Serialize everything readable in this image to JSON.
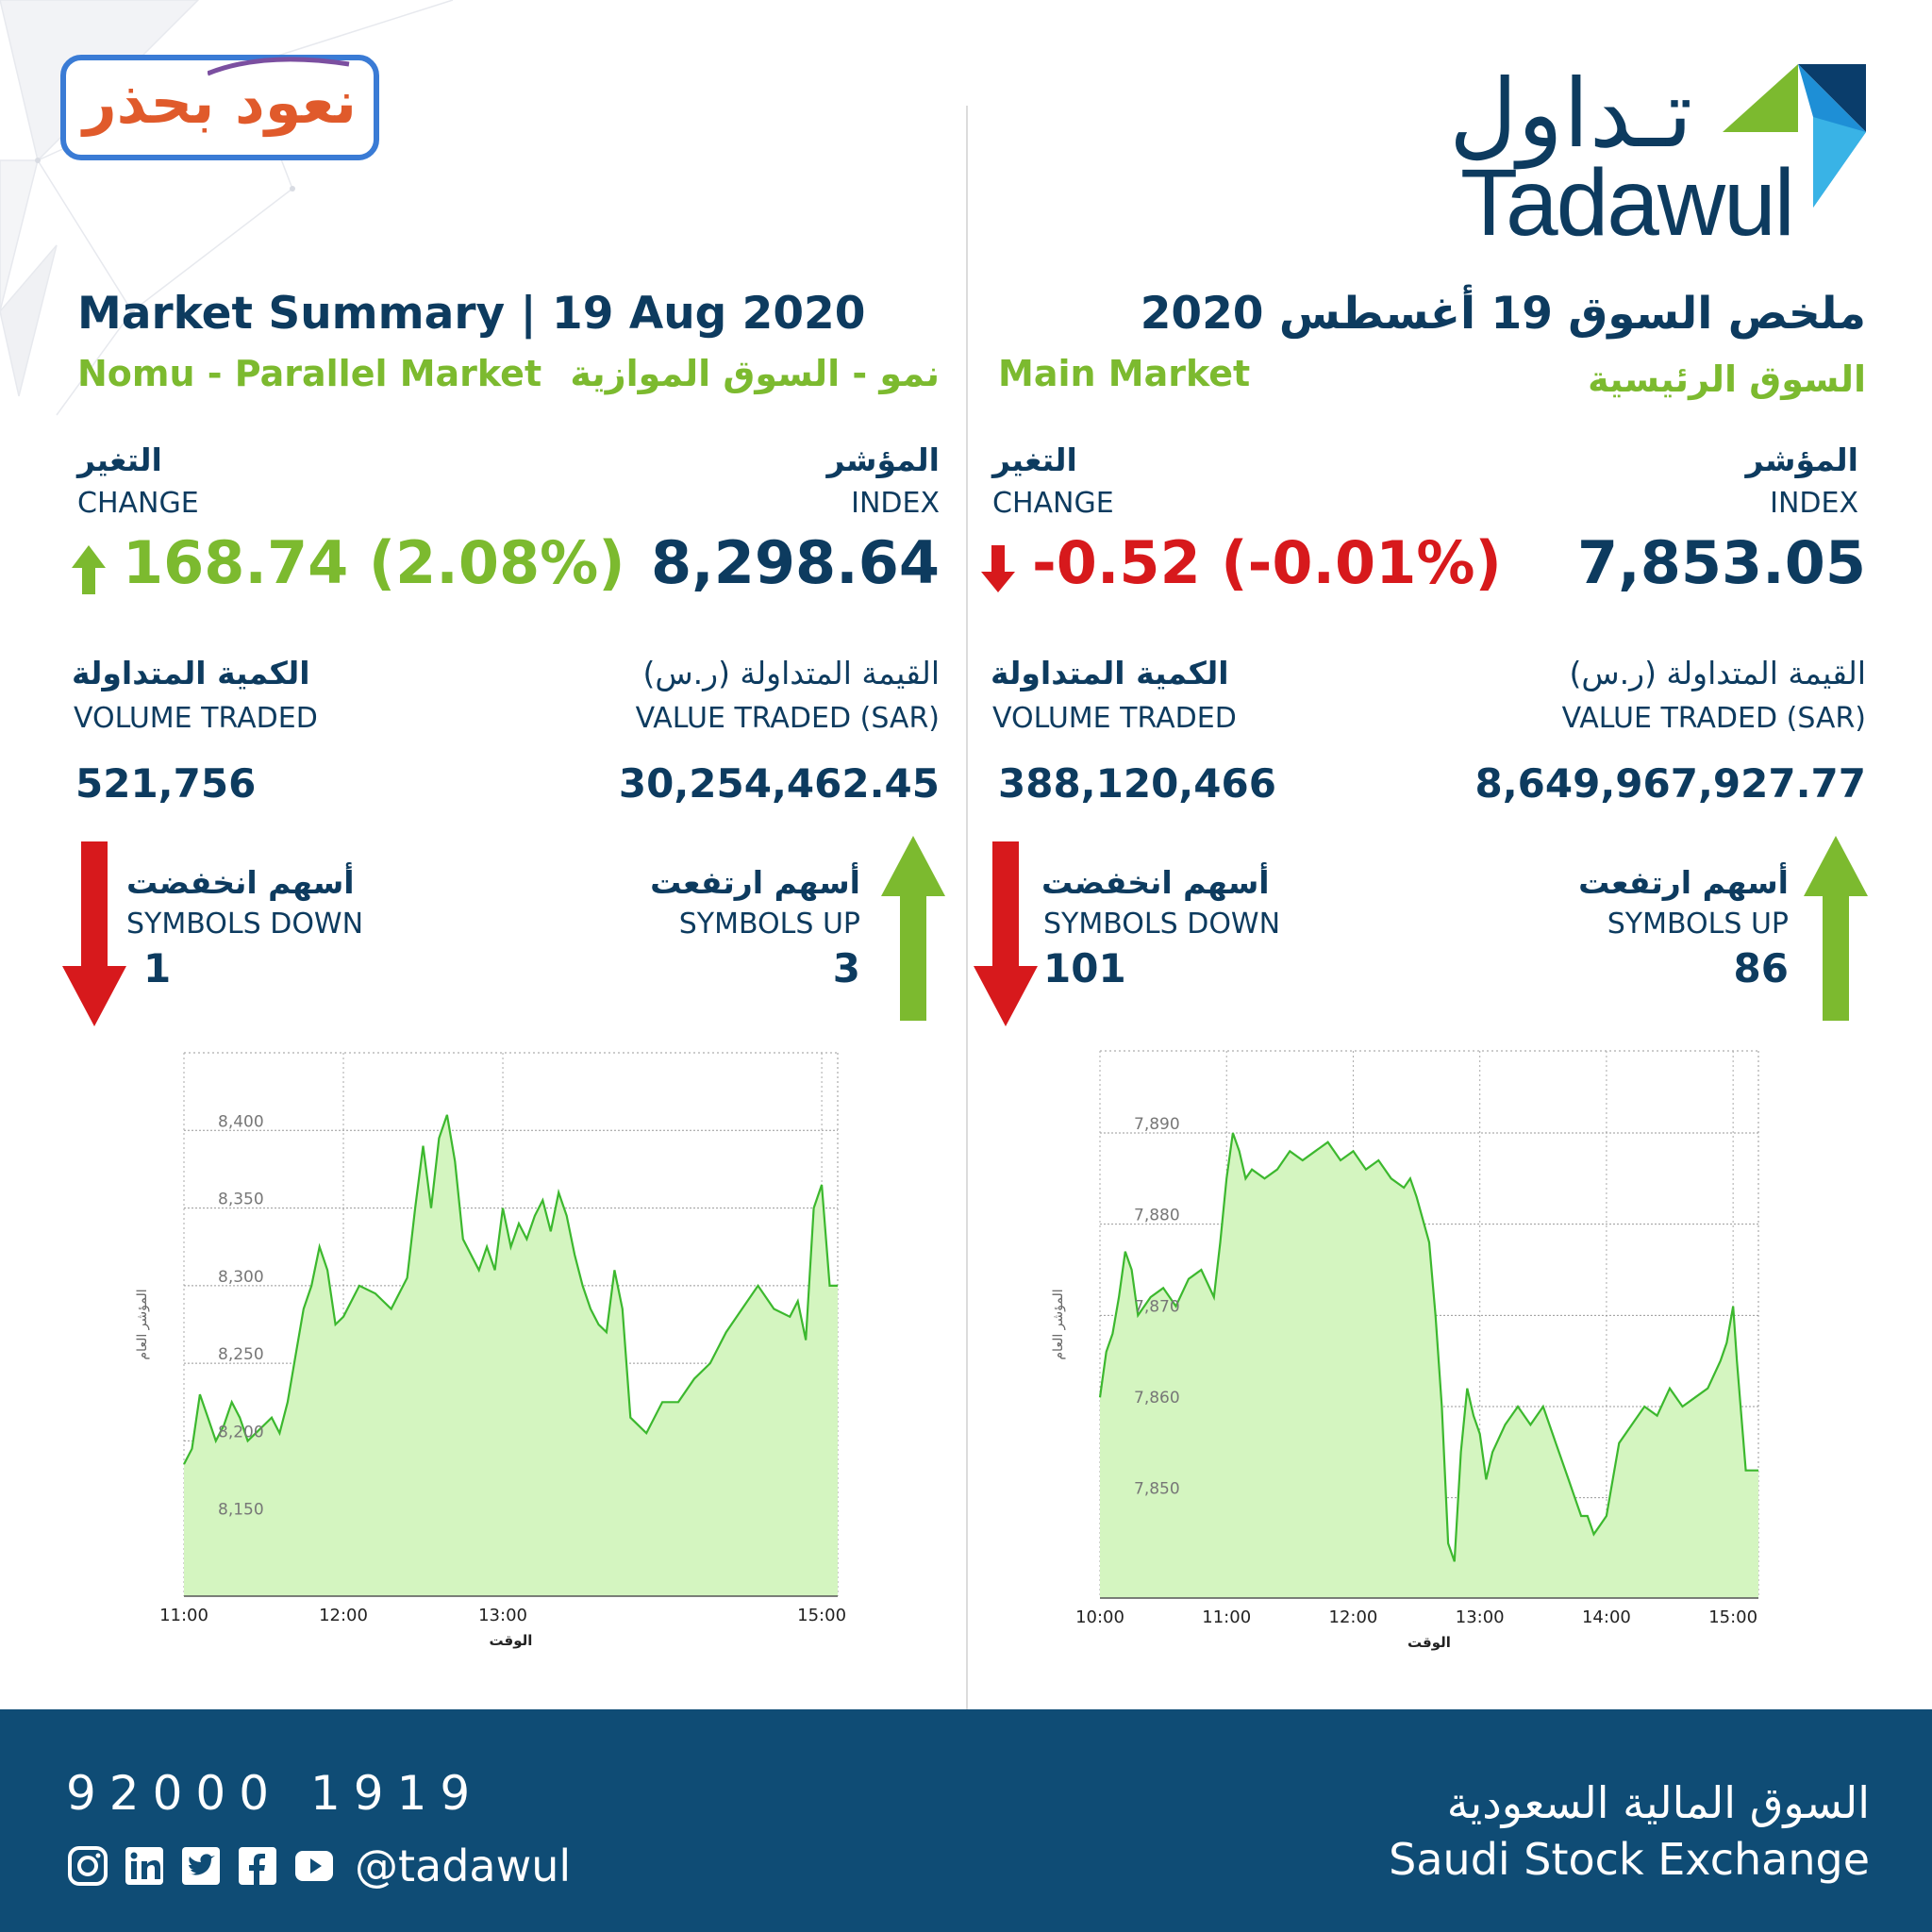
{
  "brand": {
    "campaign_logo": "نعود بحذر",
    "tadawul_ar": "تـداول",
    "tadawul_en": "Tadawul"
  },
  "header": {
    "title_en": "Market Summary | 19 Aug 2020",
    "title_ar": "ملخص السوق  19 أغسطس 2020"
  },
  "nomu": {
    "name_en": "Nomu - Parallel Market",
    "name_ar": "نمو - السوق الموازية",
    "index_ar": "المؤشر",
    "index_en": "INDEX",
    "index_value": "8,298.64",
    "change_ar": "التغير",
    "change_en": "CHANGE",
    "change_value": "168.74 (2.08%)",
    "value_traded_ar": "القيمة المتداولة (ر.س)",
    "value_traded_en": "VALUE TRADED (SAR)",
    "value_traded": "30,254,462.45",
    "volume_traded_ar": "الكمية المتداولة",
    "volume_traded_en": "VOLUME TRADED",
    "volume_traded": "521,756",
    "symbols_up_ar": "أسهم ارتفعت",
    "symbols_up_en": "SYMBOLS UP",
    "symbols_up": "3",
    "symbols_down_ar": "أسهم انخفضت",
    "symbols_down_en": "SYMBOLS DOWN",
    "symbols_down": "1"
  },
  "main": {
    "name_en": "Main Market",
    "name_ar": "السوق الرئيسية",
    "index_ar": "المؤشر",
    "index_en": "INDEX",
    "index_value": "7,853.05",
    "change_ar": "التغير",
    "change_en": "CHANGE",
    "change_value": "-0.52 (-0.01%)",
    "value_traded_ar": "القيمة المتداولة (ر.س)",
    "value_traded_en": "VALUE TRADED (SAR)",
    "value_traded": "8,649,967,927.77",
    "volume_traded_ar": "الكمية المتداولة",
    "volume_traded_en": "VOLUME TRADED",
    "volume_traded": "388,120,466",
    "symbols_up_ar": "أسهم ارتفعت",
    "symbols_up_en": "SYMBOLS UP",
    "symbols_up": "86",
    "symbols_down_ar": "أسهم انخفضت",
    "symbols_down_en": "SYMBOLS DOWN",
    "symbols_down": "101"
  },
  "colors": {
    "navy": "#0d3b5f",
    "green": "#7cba2f",
    "red": "#d7191c",
    "chart_line": "#3cb82e",
    "chart_fill": "#d4f5c0",
    "footer_bg": "#0f4c75"
  },
  "footer": {
    "phone": "92000 1919",
    "handle": "@tadawul",
    "exchange_ar": "السوق المالية السعودية",
    "exchange_en": "Saudi Stock Exchange",
    "social_icons": [
      "instagram-icon",
      "linkedin-icon",
      "twitter-icon",
      "facebook-icon",
      "youtube-icon"
    ]
  },
  "chart_data": [
    {
      "type": "area",
      "market": "Nomu",
      "xlabel": "الوقت",
      "ylabel": "المؤشر العام",
      "xlim": [
        11.0,
        15.1
      ],
      "ylim": [
        8100,
        8450
      ],
      "x_ticks": [
        11,
        12,
        13,
        15
      ],
      "x_tick_labels": [
        "11:00",
        "12:00",
        "13:00",
        "15:00"
      ],
      "y_ticks": [
        8150,
        8200,
        8250,
        8300,
        8350,
        8400
      ],
      "y_tick_labels": [
        "8,150",
        "8,200",
        "8,250",
        "8,300",
        "8,350",
        "8,400"
      ],
      "grid": true,
      "x": [
        11.0,
        11.05,
        11.1,
        11.15,
        11.2,
        11.25,
        11.3,
        11.35,
        11.4,
        11.45,
        11.5,
        11.55,
        11.6,
        11.65,
        11.7,
        11.75,
        11.8,
        11.85,
        11.9,
        11.95,
        12.0,
        12.1,
        12.2,
        12.3,
        12.4,
        12.45,
        12.5,
        12.55,
        12.6,
        12.65,
        12.7,
        12.75,
        12.8,
        12.85,
        12.9,
        12.95,
        13.0,
        13.05,
        13.1,
        13.15,
        13.2,
        13.25,
        13.3,
        13.35,
        13.4,
        13.45,
        13.5,
        13.55,
        13.6,
        13.65,
        13.7,
        13.75,
        13.8,
        13.9,
        14.0,
        14.1,
        14.2,
        14.3,
        14.4,
        14.5,
        14.6,
        14.7,
        14.8,
        14.85,
        14.9,
        14.95,
        15.0,
        15.05,
        15.1
      ],
      "y": [
        8185,
        8195,
        8230,
        8215,
        8200,
        8210,
        8225,
        8215,
        8200,
        8205,
        8210,
        8215,
        8205,
        8225,
        8255,
        8285,
        8300,
        8325,
        8310,
        8275,
        8280,
        8300,
        8295,
        8285,
        8305,
        8350,
        8390,
        8350,
        8395,
        8410,
        8380,
        8330,
        8320,
        8310,
        8325,
        8310,
        8350,
        8325,
        8340,
        8330,
        8345,
        8355,
        8335,
        8360,
        8345,
        8320,
        8300,
        8285,
        8275,
        8270,
        8310,
        8285,
        8215,
        8205,
        8225,
        8225,
        8240,
        8250,
        8270,
        8285,
        8300,
        8285,
        8280,
        8290,
        8265,
        8350,
        8365,
        8300,
        8300
      ]
    },
    {
      "type": "area",
      "market": "Main",
      "xlabel": "الوقت",
      "ylabel": "المؤشر العام",
      "xlim": [
        10.0,
        15.2
      ],
      "ylim": [
        7839,
        7899
      ],
      "x_ticks": [
        10,
        11,
        12,
        13,
        14,
        15
      ],
      "x_tick_labels": [
        "10:00",
        "11:00",
        "12:00",
        "13:00",
        "14:00",
        "15:00"
      ],
      "y_ticks": [
        7850,
        7860,
        7870,
        7880,
        7890
      ],
      "y_tick_labels": [
        "7,850",
        "7,860",
        "7,870",
        "7,880",
        "7,890"
      ],
      "grid": true,
      "x": [
        10.0,
        10.05,
        10.1,
        10.15,
        10.2,
        10.25,
        10.3,
        10.4,
        10.5,
        10.6,
        10.7,
        10.8,
        10.9,
        10.95,
        11.0,
        11.05,
        11.1,
        11.15,
        11.2,
        11.3,
        11.4,
        11.5,
        11.6,
        11.7,
        11.8,
        11.9,
        12.0,
        12.1,
        12.2,
        12.3,
        12.4,
        12.45,
        12.5,
        12.6,
        12.65,
        12.7,
        12.75,
        12.8,
        12.85,
        12.9,
        12.95,
        13.0,
        13.05,
        13.1,
        13.2,
        13.3,
        13.4,
        13.5,
        13.6,
        13.7,
        13.75,
        13.8,
        13.85,
        13.9,
        13.95,
        14.0,
        14.05,
        14.1,
        14.2,
        14.3,
        14.4,
        14.5,
        14.6,
        14.7,
        14.8,
        14.9,
        14.95,
        15.0,
        15.03,
        15.1,
        15.2
      ],
      "y": [
        7861,
        7866,
        7868,
        7872,
        7877,
        7875,
        7870,
        7872,
        7873,
        7871,
        7874,
        7875,
        7872,
        7878,
        7885,
        7890,
        7888,
        7885,
        7886,
        7885,
        7886,
        7888,
        7887,
        7888,
        7889,
        7887,
        7888,
        7886,
        7887,
        7885,
        7884,
        7885,
        7883,
        7878,
        7870,
        7860,
        7845,
        7843,
        7855,
        7862,
        7859,
        7857,
        7852,
        7855,
        7858,
        7860,
        7858,
        7860,
        7856,
        7852,
        7850,
        7848,
        7848,
        7846,
        7847,
        7848,
        7852,
        7856,
        7858,
        7860,
        7859,
        7862,
        7860,
        7861,
        7862,
        7865,
        7867,
        7871,
        7865,
        7853,
        7853
      ]
    }
  ]
}
